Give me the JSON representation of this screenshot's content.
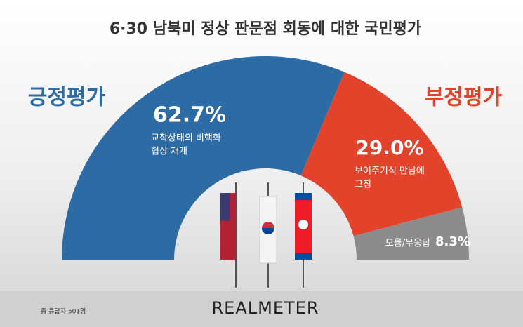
{
  "chart_data": {
    "type": "halfdonut",
    "title": "6·30 남북미 정상 판문점 회동에 대한 국민평가",
    "series": [
      {
        "name": "긍정평가",
        "color": "#2d6ba5",
        "values": [
          62.7
        ],
        "value_labels": [
          "62.7%"
        ],
        "notes": [
          "교착상태의 비핵화",
          "협상 재개"
        ]
      },
      {
        "name": "부정평가",
        "color": "#e2432a",
        "values": [
          29.0
        ],
        "value_labels": [
          "29.0%"
        ],
        "notes": [
          "보여주기식 만남에",
          "그침"
        ]
      },
      {
        "name": "모름/무응답",
        "color": "#8c8c8c",
        "values": [
          8.3
        ],
        "value_labels": [
          "8.3%"
        ]
      }
    ],
    "footnote": "총 응답자 501명",
    "brand": "REALMETER"
  }
}
